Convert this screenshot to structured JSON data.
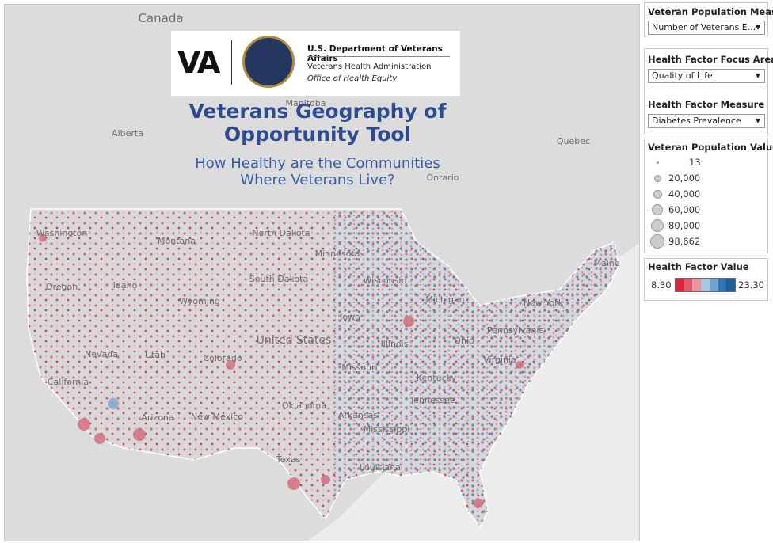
{
  "header": {
    "logo_text": "VA",
    "department": "U.S. Department of Veterans Affairs",
    "administration": "Veterans Health Administration",
    "office": "Office of Health Equity",
    "title_line1": "Veterans Geography of",
    "title_line2": "Opportunity Tool",
    "subtitle_line1": "How Healthy are the Communities",
    "subtitle_line2": "Where Veterans Live?"
  },
  "map": {
    "place_labels": [
      "Canada",
      "Manitoba",
      "Alberta",
      "Quebec",
      "Ontario",
      "Washington",
      "Montana",
      "North Dakota",
      "Minnesota",
      "South Dakota",
      "Wisconsin",
      "Michigan",
      "Oregon",
      "Idaho",
      "Wyoming",
      "Iowa",
      "New York",
      "Maine",
      "Pennsylvania",
      "Nevada",
      "Utah",
      "Colorado",
      "United States",
      "Illinois",
      "Ohio",
      "Missouri",
      "Virginia",
      "Kentucky",
      "California",
      "Arizona",
      "New Mexico",
      "Oklahoma",
      "Arkansas",
      "Tennessee",
      "Mississippi",
      "Texas",
      "Louisiana"
    ]
  },
  "filters": [
    {
      "title": "Veteran Population Meas...",
      "value": "Number of Veterans E..."
    },
    {
      "title": "Health Factor Focus Area",
      "value": "Quality of Life"
    },
    {
      "title": "Health Factor Measure",
      "value": "Diabetes Prevalence"
    }
  ],
  "size_legend": {
    "title": "Veteran Population Value",
    "items": [
      "13",
      "20,000",
      "40,000",
      "60,000",
      "80,000",
      "98,662"
    ]
  },
  "color_legend": {
    "title": "Health Factor Value",
    "min": "8.30",
    "max": "23.30"
  }
}
